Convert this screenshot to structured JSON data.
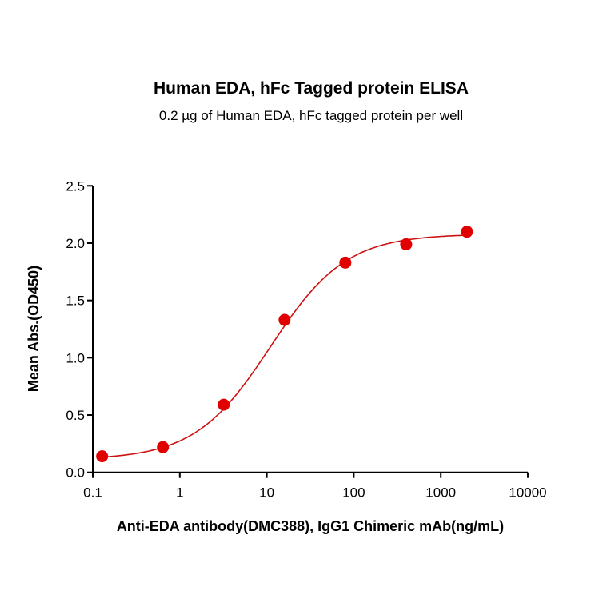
{
  "chart_data": {
    "type": "scatter",
    "title": "Human EDA, hFc Tagged protein ELISA",
    "subtitle": "0.2 µg of Human EDA, hFc tagged protein per well",
    "xlabel": "Anti-EDA antibody(DMC388), IgG1 Chimeric mAb(ng/mL)",
    "ylabel": "Mean Abs.(OD450)",
    "xscale": "log",
    "xlim": [
      0.1,
      10000
    ],
    "ylim": [
      0,
      2.5
    ],
    "xticks": [
      0.1,
      1,
      10,
      100,
      1000,
      10000
    ],
    "xtick_labels": [
      "0.1",
      "1",
      "10",
      "100",
      "1000",
      "10000"
    ],
    "yticks": [
      0,
      0.5,
      1.0,
      1.5,
      2.0,
      2.5
    ],
    "ytick_labels": [
      "0.0",
      "0.5",
      "1.0",
      "1.5",
      "2.0",
      "2.5"
    ],
    "grid": false,
    "series": [
      {
        "name": "OD450",
        "color": "#e00000",
        "x": [
          0.128,
          0.64,
          3.2,
          16,
          80,
          400,
          2000
        ],
        "y": [
          0.14,
          0.22,
          0.59,
          1.33,
          1.83,
          1.99,
          2.1
        ]
      }
    ],
    "fit": {
      "model": "4PL",
      "bottom": 0.11,
      "top": 2.08,
      "ec50": 11,
      "hill": 1.0,
      "color": "#cc1111"
    }
  }
}
